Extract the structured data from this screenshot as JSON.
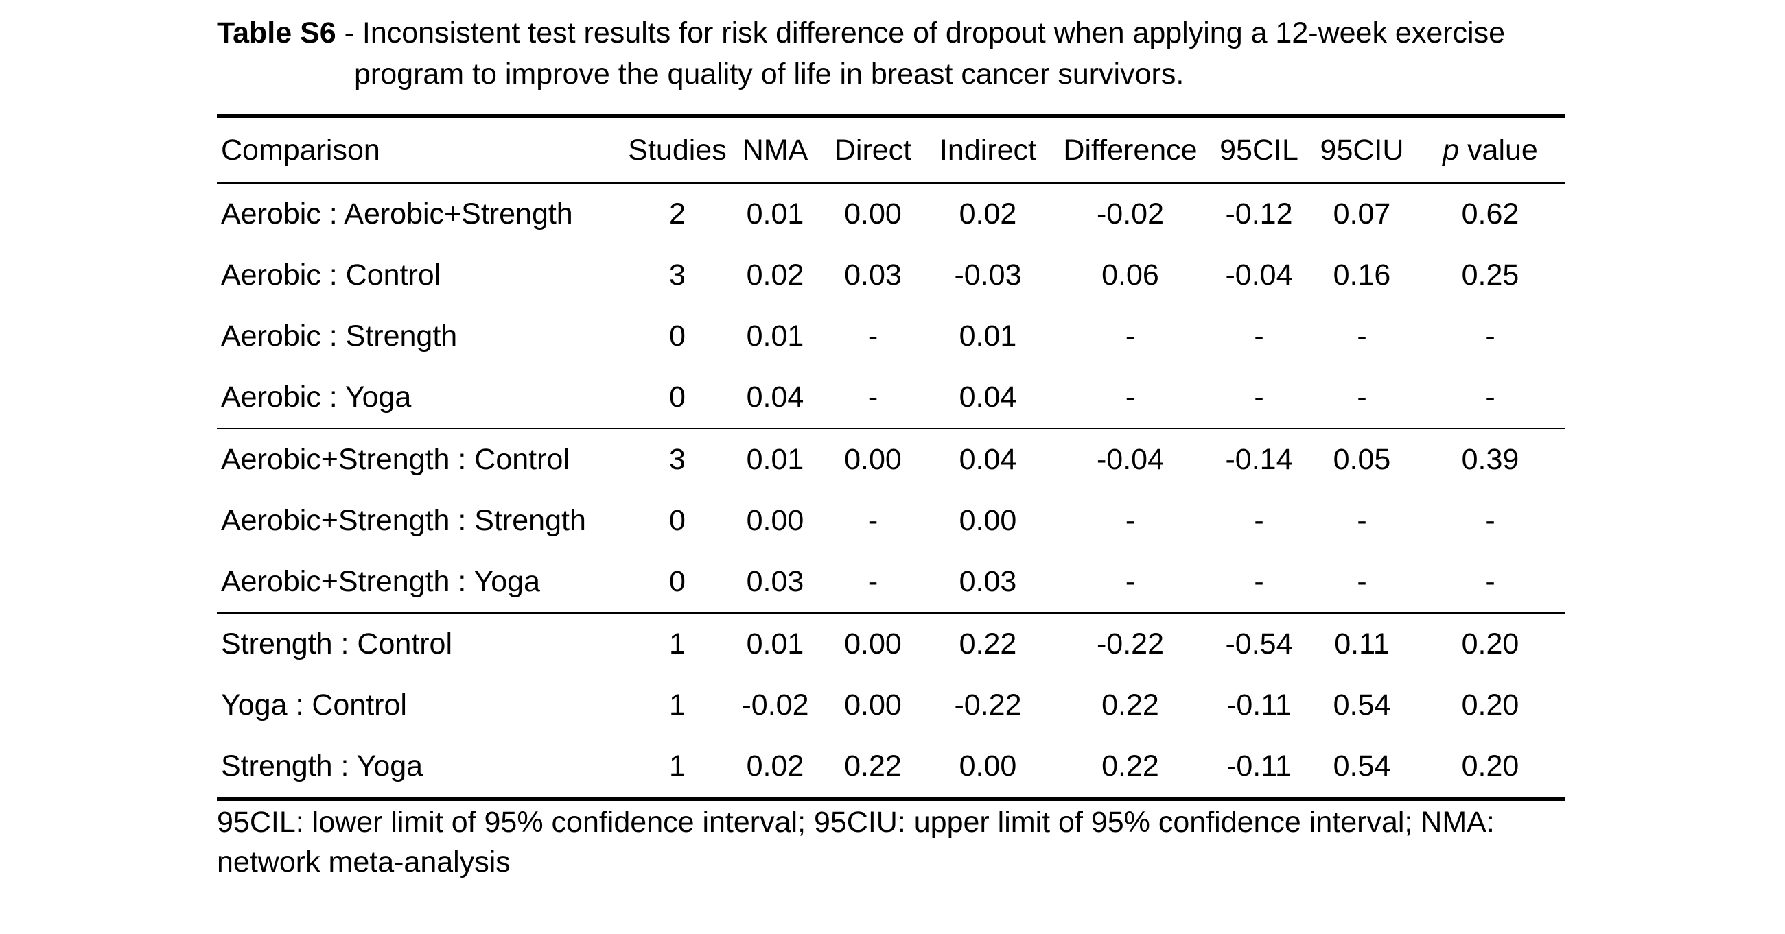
{
  "caption": {
    "label": "Table S6",
    "text": " - Inconsistent test results for risk difference of dropout when applying a 12-week exercise program to improve the quality of life in breast cancer survivors."
  },
  "table": {
    "headers": {
      "comparison": "Comparison",
      "studies": "Studies",
      "nma": "NMA",
      "direct": "Direct",
      "indirect": "Indirect",
      "difference": "Difference",
      "ci_lower": "95CIL",
      "ci_upper": "95CIU",
      "p_italic": "p",
      "p_rest": " value"
    },
    "rows": [
      [
        "Aerobic : Aerobic+Strength",
        "2",
        "0.01",
        "0.00",
        "0.02",
        "-0.02",
        "-0.12",
        "0.07",
        "0.62"
      ],
      [
        "Aerobic : Control",
        "3",
        "0.02",
        "0.03",
        "-0.03",
        "0.06",
        "-0.04",
        "0.16",
        "0.25"
      ],
      [
        "Aerobic : Strength",
        "0",
        "0.01",
        "-",
        "0.01",
        "-",
        "-",
        "-",
        "-"
      ],
      [
        "Aerobic : Yoga",
        "0",
        "0.04",
        "-",
        "0.04",
        "-",
        "-",
        "-",
        "-"
      ],
      [
        "Aerobic+Strength : Control",
        "3",
        "0.01",
        "0.00",
        "0.04",
        "-0.04",
        "-0.14",
        "0.05",
        "0.39"
      ],
      [
        "Aerobic+Strength : Strength",
        "0",
        "0.00",
        "-",
        "0.00",
        "-",
        "-",
        "-",
        "-"
      ],
      [
        "Aerobic+Strength : Yoga",
        "0",
        "0.03",
        "-",
        "0.03",
        "-",
        "-",
        "-",
        "-"
      ],
      [
        "Strength : Control",
        "1",
        "0.01",
        "0.00",
        "0.22",
        "-0.22",
        "-0.54",
        "0.11",
        "0.20"
      ],
      [
        "Yoga : Control",
        "1",
        "-0.02",
        "0.00",
        "-0.22",
        "0.22",
        "-0.11",
        "0.54",
        "0.20"
      ],
      [
        "Strength : Yoga",
        "1",
        "0.02",
        "0.22",
        "0.00",
        "0.22",
        "-0.11",
        "0.54",
        "0.20"
      ]
    ]
  },
  "footnote": "95CIL: lower limit of 95% confidence interval; 95CIU: upper limit of 95% confidence interval; NMA: network meta-analysis"
}
